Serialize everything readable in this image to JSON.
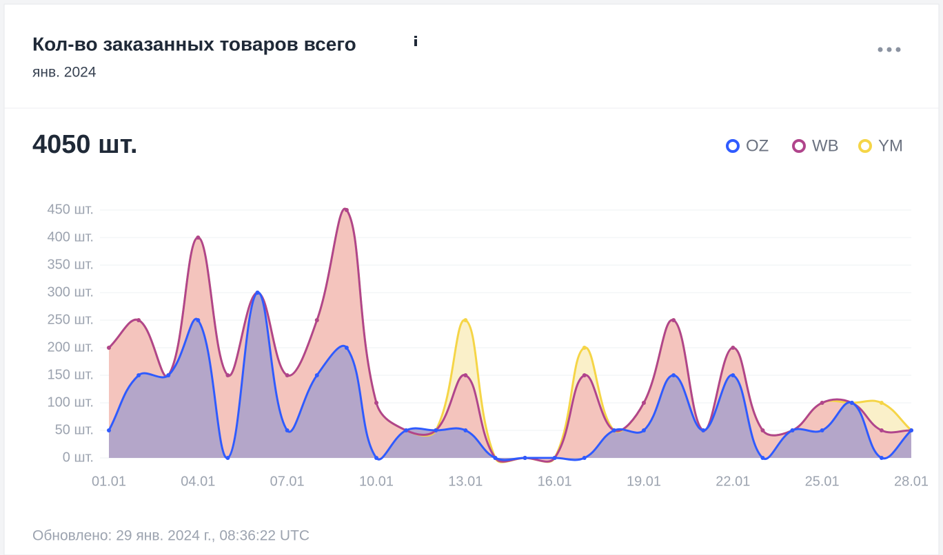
{
  "chart_data": {
    "type": "area",
    "title": "Кол-во заказанных товаров всего",
    "subtitle": "янв. 2024",
    "summary": "4050 шт.",
    "footer": "Обновлено: 29 янв. 2024 г., 08:36:22 UTC",
    "categories": [
      "01.01",
      null,
      null,
      "04.01",
      null,
      null,
      "07.01",
      null,
      null,
      "10.01",
      null,
      null,
      "13.01",
      null,
      null,
      "16.01",
      null,
      null,
      "19.01",
      null,
      null,
      "22.01",
      null,
      null,
      "25.01",
      null,
      null,
      "28.01"
    ],
    "series": [
      {
        "name": "YM",
        "color": "#f5d547",
        "fill": "#faf0c9",
        "values": [
          200,
          250,
          150,
          400,
          150,
          300,
          150,
          250,
          450,
          100,
          50,
          50,
          250,
          0,
          0,
          0,
          200,
          50,
          100,
          250,
          50,
          200,
          50,
          50,
          100,
          100,
          100,
          50
        ]
      },
      {
        "name": "WB",
        "color": "#b0458c",
        "fill": "#f4c4bd",
        "values": [
          200,
          250,
          150,
          400,
          150,
          300,
          150,
          250,
          450,
          100,
          50,
          50,
          150,
          0,
          0,
          0,
          150,
          50,
          100,
          250,
          50,
          200,
          50,
          50,
          100,
          100,
          50,
          50
        ]
      },
      {
        "name": "OZ",
        "color": "#2f5bff",
        "fill": "#b0a4c9",
        "values": [
          50,
          150,
          150,
          250,
          0,
          300,
          50,
          150,
          200,
          0,
          50,
          50,
          50,
          0,
          0,
          0,
          0,
          50,
          50,
          150,
          50,
          150,
          0,
          50,
          50,
          100,
          0,
          50
        ]
      }
    ],
    "legend_order": [
      2,
      1,
      0
    ],
    "ylim": [
      0,
      450
    ],
    "yticks": [
      {
        "value": 0,
        "label": "0 шт."
      },
      {
        "value": 50,
        "label": "50 шт."
      },
      {
        "value": 100,
        "label": "100 шт."
      },
      {
        "value": 150,
        "label": "150 шт."
      },
      {
        "value": 200,
        "label": "200 шт."
      },
      {
        "value": 250,
        "label": "250 шт."
      },
      {
        "value": 300,
        "label": "300 шт."
      },
      {
        "value": 350,
        "label": "350 шт."
      },
      {
        "value": 400,
        "label": "400 шт."
      },
      {
        "value": 450,
        "label": "450 шт."
      }
    ],
    "grid": true
  }
}
